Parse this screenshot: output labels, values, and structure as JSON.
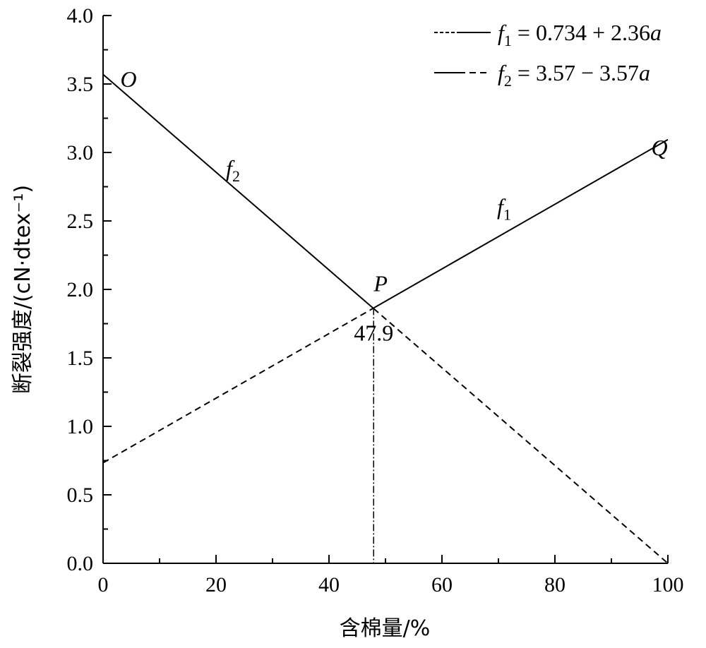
{
  "chart_data": {
    "type": "line",
    "title": "",
    "xlabel": "含棉量/%",
    "ylabel": "断裂强度/(cN·dtex⁻¹)",
    "xlim": [
      0,
      100
    ],
    "ylim": [
      0,
      4.0
    ],
    "x_ticks": [
      0,
      20,
      40,
      60,
      80,
      100
    ],
    "x_tick_labels": [
      "0",
      "20",
      "40",
      "60",
      "80",
      "100"
    ],
    "y_ticks": [
      0,
      0.5,
      1.0,
      1.5,
      2.0,
      2.5,
      3.0,
      3.5,
      4.0
    ],
    "y_tick_labels": [
      "0.0",
      "0.5",
      "1.0",
      "1.5",
      "2.0",
      "2.5",
      "3.0",
      "3.5",
      "4.0"
    ],
    "grid": false,
    "legend_position": "top-right",
    "series": [
      {
        "name": "f1 = 0.734 + 2.36a",
        "legend_label": {
          "sym": "f",
          "sub": "1",
          "rest": " = 0.734 + 2.36",
          "var": "a"
        },
        "equation": {
          "intercept": 0.734,
          "slope": 2.36
        },
        "x": [
          0,
          47.9,
          100
        ],
        "y": [
          0.734,
          1.864,
          3.094
        ],
        "styles": [
          "dashed",
          "solid"
        ]
      },
      {
        "name": "f2 = 3.57 - 3.57a",
        "legend_label": {
          "sym": "f",
          "sub": "2",
          "rest": " = 3.57 − 3.57",
          "var": "a"
        },
        "equation": {
          "intercept": 3.57,
          "slope": -3.57
        },
        "x": [
          0,
          47.9,
          100
        ],
        "y": [
          3.57,
          1.86,
          0.0
        ],
        "styles": [
          "solid",
          "dashed"
        ]
      }
    ],
    "intersection": {
      "label": "P",
      "x": 47.9,
      "y": 1.864,
      "x_label": "47.9"
    },
    "annotations": [
      {
        "text": "O",
        "x": 4.5,
        "y": 3.48
      },
      {
        "text": "Q",
        "x": 98.5,
        "y": 2.98
      },
      {
        "text": "f",
        "sub": "2",
        "x": 23,
        "y": 2.83
      },
      {
        "text": "f",
        "sub": "1",
        "x": 71,
        "y": 2.55
      }
    ]
  }
}
